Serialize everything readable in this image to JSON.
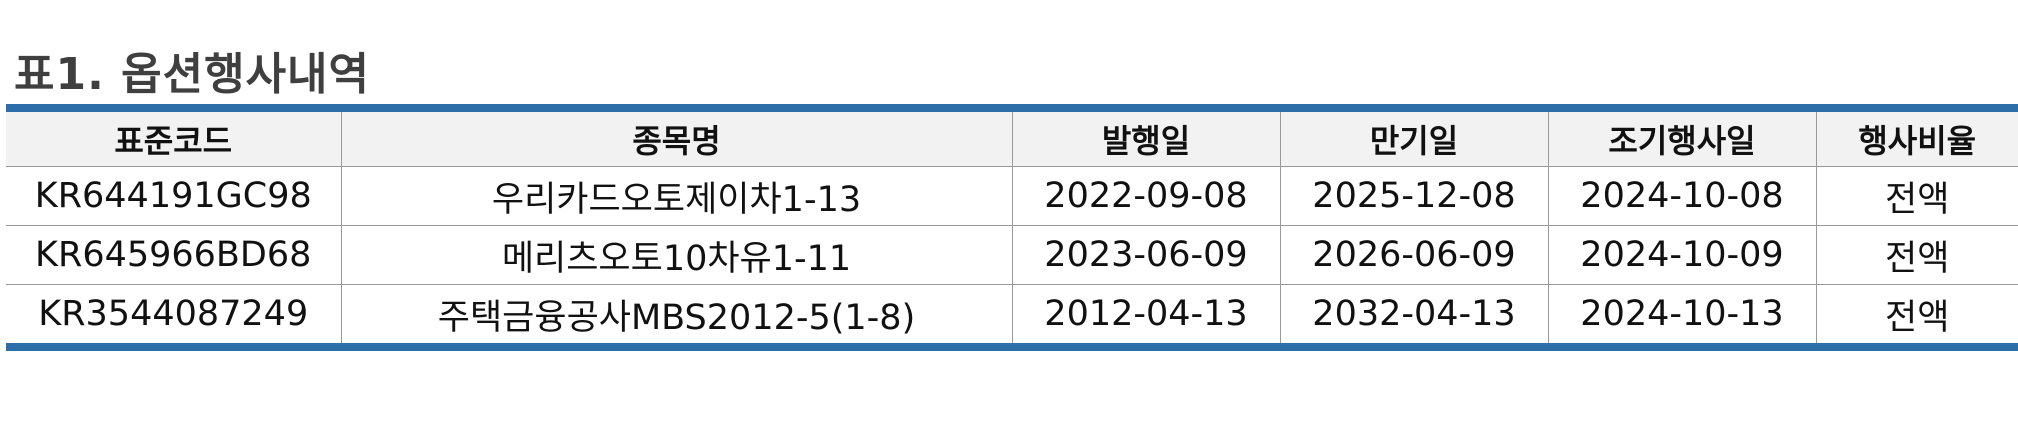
{
  "title": "표1. 옵션행사내역",
  "table": {
    "headers": [
      "표준코드",
      "종목명",
      "발행일",
      "만기일",
      "조기행사일",
      "행사비율"
    ],
    "rows": [
      [
        "KR644191GC98",
        "우리카드오토제이차1-13",
        "2022-09-08",
        "2025-12-08",
        "2024-10-08",
        "전액"
      ],
      [
        "KR645966BD68",
        "메리츠오토10차유1-11",
        "2023-06-09",
        "2026-06-09",
        "2024-10-09",
        "전액"
      ],
      [
        "KR3544087249",
        "주택금융공사MBS2012-5(1-8)",
        "2012-04-13",
        "2032-04-13",
        "2024-10-13",
        "전액"
      ]
    ]
  },
  "colors": {
    "accent": "#2e6ea8",
    "header_bg": "#f2f2f2",
    "title": "#3f3f3f"
  }
}
